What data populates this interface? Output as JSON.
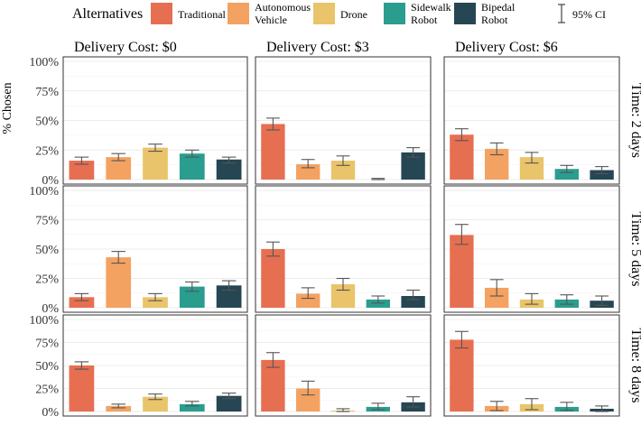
{
  "chart_data": {
    "type": "bar",
    "ylabel": "% Chosen",
    "ylim": [
      0,
      100
    ],
    "yticks": [
      "0%",
      "25%",
      "50%",
      "75%",
      "100%"
    ],
    "legend": {
      "title": "Alternatives",
      "items": [
        {
          "label": [
            "Traditional"
          ],
          "color": "#E76F51"
        },
        {
          "label": [
            "Autonomous",
            "Vehicle"
          ],
          "color": "#F4A261"
        },
        {
          "label": [
            "Drone"
          ],
          "color": "#E9C46A"
        },
        {
          "label": [
            "Sidewalk",
            "Robot"
          ],
          "color": "#2A9D8F"
        },
        {
          "label": [
            "Bipedal",
            "Robot"
          ],
          "color": "#264653"
        }
      ],
      "ci_label": "95% CI"
    },
    "categories": [
      "Traditional",
      "Autonomous Vehicle",
      "Drone",
      "Sidewalk Robot",
      "Bipedal Robot"
    ],
    "colors": [
      "#E76F51",
      "#F4A261",
      "#E9C46A",
      "#2A9D8F",
      "#264653"
    ],
    "col_labels": [
      "Delivery Cost: $0",
      "Delivery Cost: $3",
      "Delivery Cost: $6"
    ],
    "row_labels": [
      "Time: 2 days",
      "Time: 5 days",
      "Time: 8 days"
    ],
    "panels": [
      [
        {
          "values": [
            16,
            19,
            27,
            22,
            17
          ],
          "ci": [
            [
              13,
              19
            ],
            [
              16,
              22
            ],
            [
              24,
              30
            ],
            [
              19,
              25
            ],
            [
              14,
              19
            ]
          ]
        },
        {
          "values": [
            47,
            13,
            16,
            0,
            23
          ],
          "ci": [
            [
              42,
              52
            ],
            [
              10,
              17
            ],
            [
              12,
              20
            ],
            [
              0,
              1
            ],
            [
              19,
              27
            ]
          ]
        },
        {
          "values": [
            38,
            26,
            19,
            9,
            8
          ],
          "ci": [
            [
              33,
              43
            ],
            [
              21,
              31
            ],
            [
              14,
              23
            ],
            [
              6,
              12
            ],
            [
              5,
              11
            ]
          ]
        }
      ],
      [
        {
          "values": [
            9,
            43,
            9,
            18,
            19
          ],
          "ci": [
            [
              6,
              12
            ],
            [
              38,
              48
            ],
            [
              6,
              12
            ],
            [
              14,
              22
            ],
            [
              15,
              23
            ]
          ]
        },
        {
          "values": [
            50,
            12,
            20,
            7,
            10
          ],
          "ci": [
            [
              44,
              56
            ],
            [
              8,
              17
            ],
            [
              15,
              25
            ],
            [
              4,
              10
            ],
            [
              7,
              15
            ]
          ]
        },
        {
          "values": [
            62,
            17,
            7,
            7,
            6
          ],
          "ci": [
            [
              54,
              71
            ],
            [
              10,
              24
            ],
            [
              3,
              12
            ],
            [
              3,
              11
            ],
            [
              2,
              10
            ]
          ]
        }
      ],
      [
        {
          "values": [
            50,
            6,
            16,
            8,
            17
          ],
          "ci": [
            [
              46,
              54
            ],
            [
              4,
              8
            ],
            [
              13,
              19
            ],
            [
              6,
              11
            ],
            [
              14,
              20
            ]
          ]
        },
        {
          "values": [
            56,
            25,
            1,
            5,
            10
          ],
          "ci": [
            [
              48,
              64
            ],
            [
              18,
              33
            ],
            [
              0,
              3
            ],
            [
              2,
              9
            ],
            [
              5,
              16
            ]
          ]
        },
        {
          "values": [
            78,
            6,
            8,
            5,
            3
          ],
          "ci": [
            [
              69,
              87
            ],
            [
              1,
              11
            ],
            [
              2,
              14
            ],
            [
              1,
              10
            ],
            [
              0,
              6
            ]
          ]
        }
      ]
    ]
  }
}
